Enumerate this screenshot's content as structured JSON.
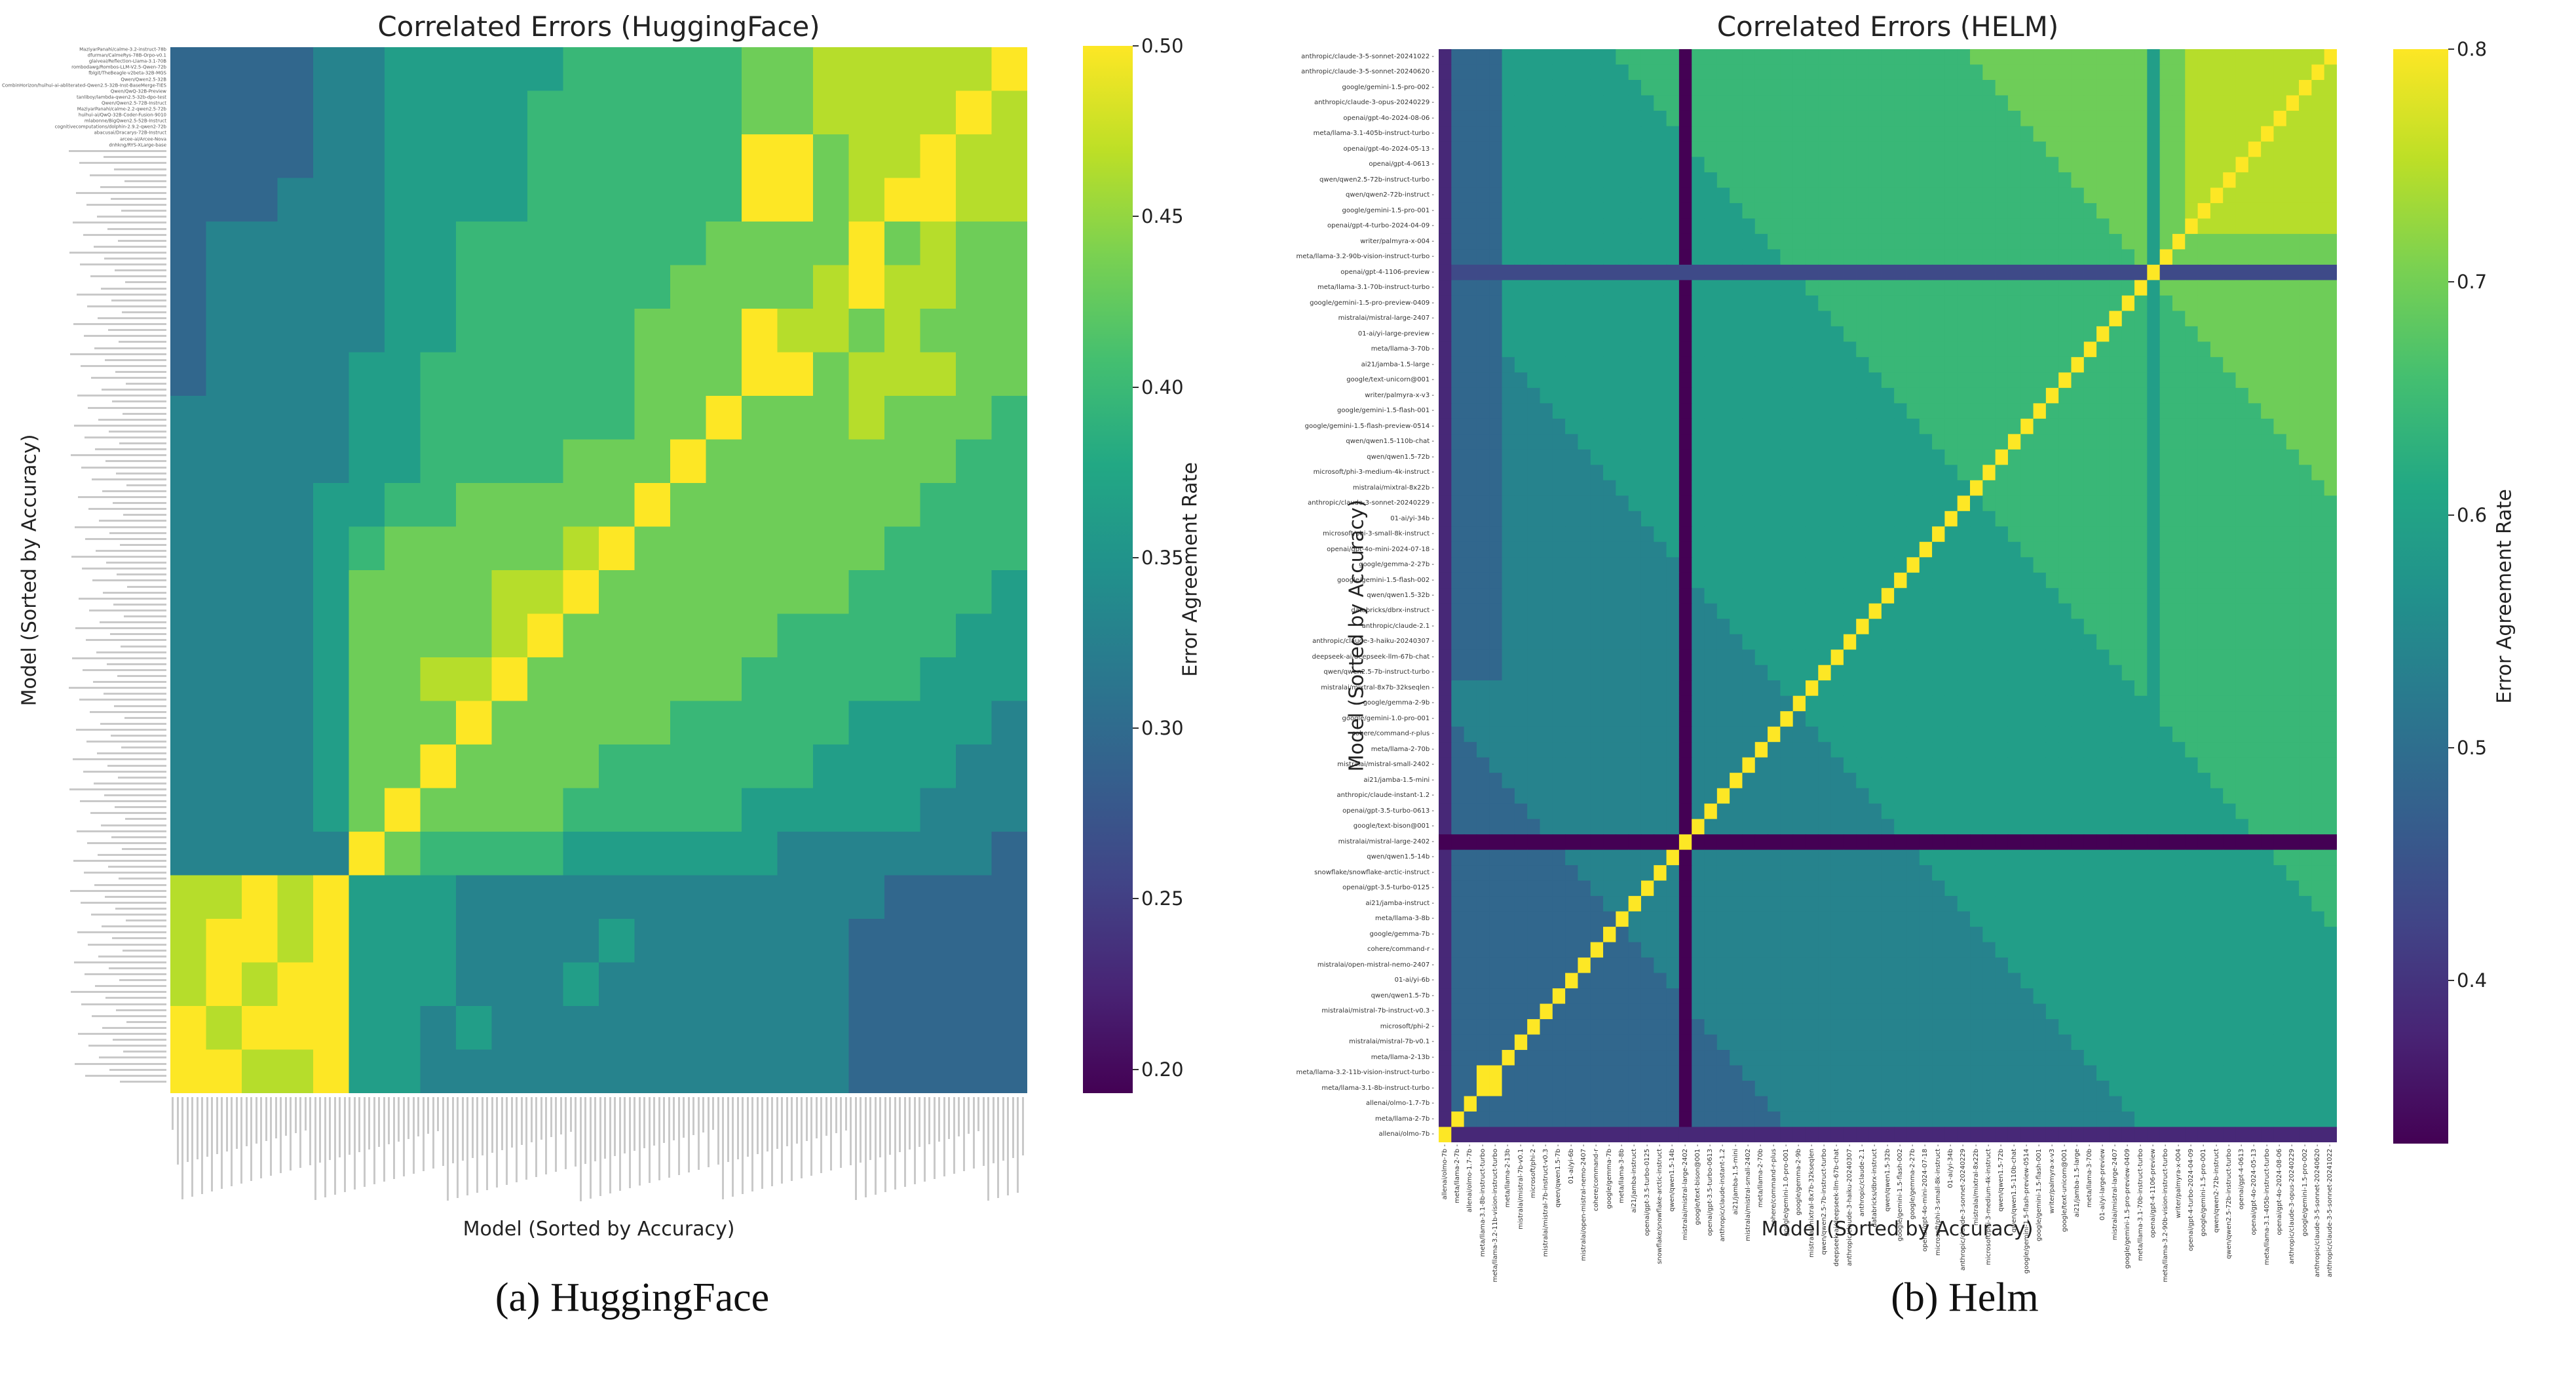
{
  "chart_data": [
    {
      "type": "heatmap",
      "title": "Correlated Errors (HuggingFace)",
      "xlabel": "Model (Sorted by Accuracy)",
      "ylabel": "Model (Sorted by Accuracy)",
      "colorbar_label": "Error Agreement Rate",
      "colormap": "viridis",
      "vmin": 0.193,
      "vmax": 0.5,
      "colorbar_ticks": [
        0.5,
        0.45,
        0.4,
        0.35,
        0.3,
        0.25,
        0.2
      ],
      "colorbar_tick_labels": [
        "0.50",
        "0.45",
        "0.40",
        "0.35",
        "0.30",
        "0.25",
        "0.20"
      ],
      "caption": "(a) HuggingFace",
      "row_order": "descending accuracy (top = most accurate)",
      "visible_top_row_labels": [
        "MaziyarPanahi/calme-3.2-instruct-78b",
        "dfurman/CalmeRys-78B-Orpo-v0.1",
        "glaiveai/Reflection-Llama-3.1-70B",
        "rombodawg/Rombos-LLM-V2.5-Qwen-72b",
        "fblgit/TheBeagle-v2beta-32B-MGS",
        "Qwen/Qwen2.5-32B",
        "CombinHorizon/huihui-ai-abliterated-Qwen2.5-32B-Inst-BaseMerge-TIES",
        "Qwen/QwQ-32B-Preview",
        "tanliboy/lambda-qwen2.5-32b-dpo-test",
        "Qwen/Qwen2.5-72B-Instruct",
        "MaziyarPanahi/calme-2.2-qwen2.5-72b",
        "huihui-ai/QwQ-32B-Coder-Fusion-9010",
        "mlabonne/BigQwen2.5-52B-Instruct",
        "cognitivecomputations/dolphin-2.9.2-qwen2-72b",
        "abacusai/Dracarys-72B-Instruct",
        "arcee-ai/Arcee-Nova",
        "dnhkng/RYS-XLarge-base"
      ],
      "approx_block_levels_note": "coarse 24x24 block approximation; level L maps to vmin + L*(vmax-vmin)/9; rows top->bottom, cols left->right (ascending accuracy)",
      "approx_block_levels": [
        "333344555556666677888889",
        "333344555566666677888898",
        "333344555566666699788988",
        "333444555566666699789988",
        "344444556666666777797877",
        "344444556666667777898877",
        "344444556666677798878777",
        "344445566666677799788877",
        "444445566666677977787776",
        "444445566667779777777766",
        "444455667777797777777666",
        "444456777778977777776666",
        "444457777889777777766665",
        "444457777897777776666655",
        "444457788977777766666555",
        "444457779777776666655554",
        "444457797777666666555544",
        "444457977776666655555444",
        "444449766665555554444443",
        "889895554444444444443333",
        "899895554444544444433333",
        "898995554445444444433333",
        "989995545444444444433333",
        "998895544444444444433333"
      ]
    },
    {
      "type": "heatmap",
      "title": "Correlated Errors (HELM)",
      "xlabel": "Model (Sorted by Accuracy)",
      "ylabel": "Model (Sorted by Accuracy)",
      "colorbar_label": "Error Agreement Rate",
      "colormap": "viridis",
      "vmin": 0.33,
      "vmax": 0.8,
      "colorbar_ticks": [
        0.8,
        0.7,
        0.6,
        0.5,
        0.4
      ],
      "colorbar_tick_labels": [
        "0.8",
        "0.7",
        "0.6",
        "0.5",
        "0.4"
      ],
      "caption": "(b) Helm",
      "row_order": "descending accuracy (top = most accurate); x axis is the same list in ascending order",
      "models": [
        "anthropic/claude-3-5-sonnet-20241022",
        "anthropic/claude-3-5-sonnet-20240620",
        "google/gemini-1.5-pro-002",
        "anthropic/claude-3-opus-20240229",
        "openai/gpt-4o-2024-08-06",
        "meta/llama-3.1-405b-instruct-turbo",
        "openai/gpt-4o-2024-05-13",
        "openai/gpt-4-0613",
        "qwen/qwen2.5-72b-instruct-turbo",
        "qwen/qwen2-72b-instruct",
        "google/gemini-1.5-pro-001",
        "openai/gpt-4-turbo-2024-04-09",
        "writer/palmyra-x-004",
        "meta/llama-3.2-90b-vision-instruct-turbo",
        "openai/gpt-4-1106-preview",
        "meta/llama-3.1-70b-instruct-turbo",
        "google/gemini-1.5-pro-preview-0409",
        "mistralai/mistral-large-2407",
        "01-ai/yi-large-preview",
        "meta/llama-3-70b",
        "ai21/jamba-1.5-large",
        "google/text-unicorn@001",
        "writer/palmyra-x-v3",
        "google/gemini-1.5-flash-001",
        "google/gemini-1.5-flash-preview-0514",
        "qwen/qwen1.5-110b-chat",
        "qwen/qwen1.5-72b",
        "microsoft/phi-3-medium-4k-instruct",
        "mistralai/mixtral-8x22b",
        "anthropic/claude-3-sonnet-20240229",
        "01-ai/yi-34b",
        "microsoft/phi-3-small-8k-instruct",
        "openai/gpt-4o-mini-2024-07-18",
        "google/gemma-2-27b",
        "google/gemini-1.5-flash-002",
        "qwen/qwen1.5-32b",
        "databricks/dbrx-instruct",
        "anthropic/claude-2.1",
        "anthropic/claude-3-haiku-20240307",
        "deepseek-ai/deepseek-llm-67b-chat",
        "qwen/qwen2.5-7b-instruct-turbo",
        "mistralai/mixtral-8x7b-32kseqlen",
        "google/gemma-2-9b",
        "google/gemini-1.0-pro-001",
        "cohere/command-r-plus",
        "meta/llama-2-70b",
        "mistralai/mistral-small-2402",
        "ai21/jamba-1.5-mini",
        "anthropic/claude-instant-1.2",
        "openai/gpt-3.5-turbo-0613",
        "google/text-bison@001",
        "mistralai/mistral-large-2402",
        "qwen/qwen1.5-14b",
        "snowflake/snowflake-arctic-instruct",
        "openai/gpt-3.5-turbo-0125",
        "ai21/jamba-instruct",
        "meta/llama-3-8b",
        "google/gemma-7b",
        "cohere/command-r",
        "mistralai/open-mistral-nemo-2407",
        "01-ai/yi-6b",
        "qwen/qwen1.5-7b",
        "mistralai/mistral-7b-instruct-v0.3",
        "microsoft/phi-2",
        "mistralai/mistral-7b-v0.1",
        "meta/llama-2-13b",
        "meta/llama-3.2-11b-vision-instruct-turbo",
        "meta/llama-3.1-8b-instruct-turbo",
        "allenai/olmo-1.7-7b",
        "meta/llama-2-7b",
        "allenai/olmo-7b"
      ],
      "approx_levels_note": "approximate quantized matrix, run-length encoded ('d*n' = level d repeated n times); level L maps to vmin + L*(vmax-vmin)/9; rows follow 'models' order, columns follow reversed 'models' order",
      "approx_levels_rle": [
        "1 3*4 5*9 6*5 0 6*22 7*14 5 7*2 8*11 9",
        "1 3*4 5*10 6*4 0 6*23 7*13 5 7*2 8*10 9 8",
        "1 3*4 5*11 6*3 0 6*24 7*12 5 7*2 8*9 9 8*2",
        "1 3*4 5*12 6*2 0 6*25 7*11 5 7*2 8*8 9 8*3",
        "1 3*4 5*13 6 0 6*26 7*10 5 7*2 8*7 9 8*4",
        "1 3*4 5*14 0 6*27 7*9 5 7*2 8*6 9 8*5",
        "1 3*4 5*14 0 6*28 7*8 5 7*2 8*5 9 8*6",
        "1 3*4 5*14 0 5 6*28 7*7 5 7*2 8*4 9 8*7",
        "1 3*4 5*14 0 5*2 6*28 7*6 5 7*2 8*3 9 8*8",
        "1 3*4 5*14 0 5*3 6*28 7*5 5 7*2 8*2 9 8*9",
        "1 3*4 5*14 0 5*4 6*28 7*4 5 7*2 8 9 8*10",
        "1 3*4 5*14 0 5*5 6*28 7*3 5 7*2 9 8*11",
        "1 3*4 5*14 0 5*6 6*28 7*2 5 7 9 7*12",
        "1 3*4 5*14 0 5*7 6*28 7 5 9 7*13",
        "1 2*55 9 2*14",
        "1 3*4 5*14 0 5*9 6*26 9 5 7*14",
        "1 3*4 5*14 0 5*10 6*24 9 6 5 6 7*13",
        "1 3*4 5*14 0 5*11 6*22 9 6*2 5 6*2 7*12",
        "1 3*4 5*14 0 5*12 6*20 9 6*3 5 6*3 7*11",
        "1 3*4 5*14 0 5*13 6*18 9 6*4 5 6*4 7*10",
        "1 3*4 4 5*13 0 5*14 6*16 9 6*5 5 6*5 7*9",
        "1 3*4 4*2 5*12 0 5*15 6*14 9 6*6 5 6*6 7*8",
        "1 3*4 4*3 5*11 0 5*16 6*12 9 6*7 5 6*7 7*7",
        "1 3*4 4*4 5*10 0 5*17 6*10 9 6*8 5 6*8 7*6",
        "1 3*4 4*5 5*9 0 5*18 6*8 9 6*9 5 6*9 7*5",
        "1 3*4 4*6 5*8 0 5*19 6*6 9 6*10 5 6*10 7*4",
        "1 3*4 4*7 5*7 0 5*20 6*4 9 6*11 5 6*11 7*3",
        "1 3*4 4*8 5*6 0 5*21 6*2 9 6*12 5 6*12 7*2",
        "1 3*4 4*9 5*5 0 5*22 9 6*13 5 6*13 7",
        "1 3*4 4*10 5*4 0 5*21 9 5 6*13 5 6*14",
        "1 3*4 4*11 5*3 0 5*20 9 5*3 6*12 5 6*14",
        "1 3*4 4*12 5*2 0 5*19 9 5*5 6*11 5 6*14",
        "1 3*4 4*13 5 0 5*18 9 5*7 6*10 5 6*14",
        "1 3*4 4*14 0 5*17 9 5*9 6*9 5 6*14",
        "1 3*4 4*14 0 5*16 9 5*11 6*8 5 6*14",
        "1 3*4 4*14 0 4 5*14 9 5*13 6*7 5 6*14",
        "1 3*4 4*14 0 4*2 5*12 9 5*15 6*6 5 6*14",
        "1 3*4 4*14 0 4*3 5*10 9 5*17 6*5 5 6*14",
        "1 3*4 4*14 0 4*4 5*8 9 5*19 6*4 5 6*14",
        "1 3*4 4*14 0 4*5 5*6 9 5*21 6*3 5 6*14",
        "1 3*4 4*14 0 4*6 5*4 9 5*23 6*2 5 6*14",
        "1 4*18 0 4*7 5*2 9 5*25 6 5 6*14",
        "1 4*18 0 4*8 9 5*28 6*14",
        "1 4*18 0 4*7 9 4 5*28 6*14",
        "1 3 4*17 0 4*6 9 4*3 5*28 6*13",
        "1 3*2 4*16 0 4*5 9 4*5 5*28 6*12",
        "1 3*3 4*15 0 4*4 9 4*7 5*28 6*11",
        "1 3*4 4*14 0 4*3 9 4*9 5*28 6*10",
        "1 3*5 4*13 0 4*2 9 4*11 5*28 6*9",
        "1 3*6 4*12 0 4 9 4*13 5*28 6*8",
        "1 3*7 4*11 0 9 4*15 5*28 6*7",
        "0*19 9 0*51",
        "1 3*9 4*8 9 0 4*18 5*28 6*5",
        "1 3*10 4*6 9 4 0 4*19 5*28 6*4",
        "1 3*11 4*4 9 4*2 0 4*20 5*28 6*3",
        "1 3*12 4*2 9 4*3 0 4*21 5*28 6*2",
        "1 3*13 9 4*4 0 4*22 5*28 6",
        "1 3*12 9 3 4*4 0 4*23 5*28",
        "1 3*11 9 3*3 4*3 0 4*24 5*27",
        "1 3*10 9 3*5 4*2 0 4*25 5*26",
        "1 3*9 9 3*7 4 0 4*26 5*25",
        "1 3*8 9 3*9 0 4*27 5*24",
        "1 3*7 9 3*10 0 4*28 5*23",
        "1 3*6 9 3*11 0 3 4*28 5*22",
        "1 3*5 9 3*12 0 3*2 4*28 5*21",
        "1 3*4 9 3*13 0 3*3 4*28 5*20",
        "1 3*2 9*2 3*14 0 3*4 4*28 5*19",
        "1 3*2 9*2 3*14 0 3*5 4*28 5*18",
        "1 3 9 3*16 0 3*6 4*28 5*17",
        "1 9 3*17 0 3*7 4*28 5*16",
        "9 1*70"
      ]
    }
  ]
}
